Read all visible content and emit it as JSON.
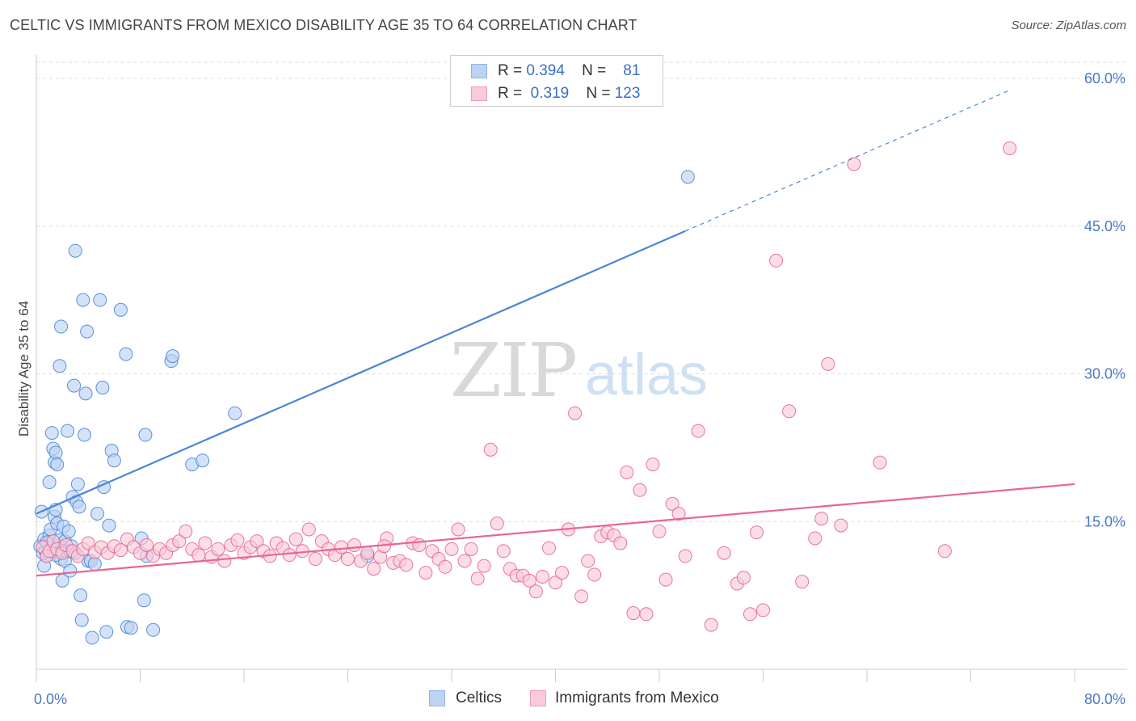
{
  "title": "CELTIC VS IMMIGRANTS FROM MEXICO DISABILITY AGE 35 TO 64 CORRELATION CHART",
  "source": "Source: ZipAtlas.com",
  "watermark": {
    "zip": "ZIP",
    "atlas": "atlas"
  },
  "stats": [
    {
      "r_label": "R =",
      "r": "0.394",
      "n_label": "N =",
      "n": "81",
      "color": "#8fb4e8",
      "fill": "#bdd3f3"
    },
    {
      "r_label": "R =",
      "r": "0.319",
      "n_label": "N =",
      "n": "123",
      "color": "#f09bb8",
      "fill": "#f9cbd9"
    }
  ],
  "legend": [
    {
      "label": "Celtics",
      "color": "#8fb4e8",
      "fill": "#bdd3f3"
    },
    {
      "label": "Immigrants from Mexico",
      "color": "#f09bb8",
      "fill": "#f9cbd9"
    }
  ],
  "chart_data": {
    "type": "scatter",
    "title": "CELTIC VS IMMIGRANTS FROM MEXICO DISABILITY AGE 35 TO 64 CORRELATION CHART",
    "xlabel": "",
    "ylabel": "Disability Age 35 to 64",
    "xlim": [
      0,
      80
    ],
    "ylim": [
      0,
      60
    ],
    "x_tick_labels": [
      "0.0%",
      "80.0%"
    ],
    "y_ticks": [
      15,
      30,
      45,
      60
    ],
    "y_tick_labels": [
      "15.0%",
      "30.0%",
      "45.0%",
      "60.0%"
    ],
    "grid": true,
    "series": [
      {
        "name": "Celtics",
        "color": "#4a86d8",
        "fill": "#bdd3f3",
        "trend": {
          "x0": 0,
          "y0": 15.8,
          "x1": 50,
          "y1": 44.5,
          "dashed_to_x": 75,
          "dashed_to_y": 58.8
        },
        "points": [
          [
            0.3,
            12.5
          ],
          [
            0.5,
            11.8
          ],
          [
            0.6,
            13.2
          ],
          [
            0.7,
            12.0
          ],
          [
            0.8,
            11.5
          ],
          [
            0.9,
            12.8
          ],
          [
            1.0,
            13.6
          ],
          [
            1.1,
            14.2
          ],
          [
            1.2,
            12.3
          ],
          [
            1.3,
            11.9
          ],
          [
            1.4,
            15.5
          ],
          [
            1.5,
            16.2
          ],
          [
            1.6,
            14.8
          ],
          [
            1.7,
            12.6
          ],
          [
            1.8,
            13.1
          ],
          [
            1.9,
            11.2
          ],
          [
            2.0,
            12.4
          ],
          [
            2.1,
            14.5
          ],
          [
            2.2,
            13.0
          ],
          [
            2.3,
            12.1
          ],
          [
            0.4,
            16.0
          ],
          [
            0.6,
            10.5
          ],
          [
            0.8,
            12.9
          ],
          [
            1.0,
            19.0
          ],
          [
            1.2,
            24.0
          ],
          [
            1.3,
            22.4
          ],
          [
            1.4,
            21.0
          ],
          [
            1.5,
            22.0
          ],
          [
            1.6,
            20.8
          ],
          [
            1.8,
            30.8
          ],
          [
            1.9,
            34.8
          ],
          [
            2.0,
            9.0
          ],
          [
            2.2,
            11.0
          ],
          [
            2.4,
            24.2
          ],
          [
            2.5,
            14.0
          ],
          [
            2.6,
            10.0
          ],
          [
            2.7,
            12.5
          ],
          [
            2.8,
            17.5
          ],
          [
            2.9,
            28.8
          ],
          [
            3.0,
            42.5
          ],
          [
            3.1,
            17.0
          ],
          [
            3.2,
            18.8
          ],
          [
            3.3,
            16.5
          ],
          [
            3.4,
            7.5
          ],
          [
            3.5,
            5.0
          ],
          [
            3.6,
            37.5
          ],
          [
            3.7,
            23.8
          ],
          [
            3.8,
            28.0
          ],
          [
            3.9,
            34.3
          ],
          [
            4.0,
            11.0
          ],
          [
            4.2,
            11.0
          ],
          [
            4.3,
            3.2
          ],
          [
            4.5,
            10.7
          ],
          [
            4.7,
            15.8
          ],
          [
            4.9,
            37.5
          ],
          [
            5.1,
            28.6
          ],
          [
            5.2,
            18.5
          ],
          [
            5.4,
            3.8
          ],
          [
            5.6,
            14.6
          ],
          [
            5.8,
            22.2
          ],
          [
            6.0,
            21.2
          ],
          [
            6.5,
            36.5
          ],
          [
            6.9,
            32.0
          ],
          [
            7.0,
            4.3
          ],
          [
            7.3,
            4.2
          ],
          [
            8.1,
            13.3
          ],
          [
            8.4,
            23.8
          ],
          [
            8.3,
            7.0
          ],
          [
            8.5,
            11.5
          ],
          [
            9.0,
            4.0
          ],
          [
            10.4,
            31.3
          ],
          [
            10.5,
            31.8
          ],
          [
            12.0,
            20.8
          ],
          [
            12.8,
            21.2
          ],
          [
            15.3,
            26.0
          ],
          [
            2.0,
            12.0
          ],
          [
            3.0,
            11.8
          ],
          [
            1.5,
            11.6
          ],
          [
            25.5,
            11.5
          ],
          [
            50.2,
            50.0
          ],
          [
            2.6,
            12.0
          ]
        ]
      },
      {
        "name": "Immigrants from Mexico",
        "color": "#e86594",
        "fill": "#f9cbd9",
        "trend": {
          "x0": 0,
          "y0": 9.5,
          "x1": 80,
          "y1": 18.8
        },
        "points": [
          [
            0.5,
            12.4
          ],
          [
            0.8,
            11.5
          ],
          [
            1.0,
            12.0
          ],
          [
            1.3,
            13.0
          ],
          [
            1.6,
            12.2
          ],
          [
            2.0,
            11.8
          ],
          [
            2.3,
            12.6
          ],
          [
            2.8,
            12.0
          ],
          [
            3.2,
            11.5
          ],
          [
            3.6,
            12.2
          ],
          [
            4.0,
            12.8
          ],
          [
            4.5,
            11.9
          ],
          [
            5.0,
            12.4
          ],
          [
            5.5,
            11.8
          ],
          [
            6.0,
            12.5
          ],
          [
            6.5,
            12.1
          ],
          [
            7.0,
            13.2
          ],
          [
            7.5,
            12.4
          ],
          [
            8.0,
            11.8
          ],
          [
            8.5,
            12.6
          ],
          [
            9.0,
            11.5
          ],
          [
            9.5,
            12.2
          ],
          [
            10.0,
            11.8
          ],
          [
            10.5,
            12.6
          ],
          [
            11.0,
            13.0
          ],
          [
            11.5,
            14.0
          ],
          [
            12.0,
            12.2
          ],
          [
            12.5,
            11.6
          ],
          [
            13.0,
            12.8
          ],
          [
            13.5,
            11.4
          ],
          [
            14.0,
            12.2
          ],
          [
            14.5,
            11.0
          ],
          [
            15.0,
            12.6
          ],
          [
            15.5,
            13.1
          ],
          [
            16.0,
            11.8
          ],
          [
            16.5,
            12.4
          ],
          [
            17.0,
            13.0
          ],
          [
            17.5,
            12.0
          ],
          [
            18.0,
            11.5
          ],
          [
            18.5,
            12.8
          ],
          [
            19.0,
            12.3
          ],
          [
            19.5,
            11.6
          ],
          [
            20.0,
            13.2
          ],
          [
            20.5,
            12.0
          ],
          [
            21.0,
            14.2
          ],
          [
            21.5,
            11.2
          ],
          [
            22.0,
            13.0
          ],
          [
            22.5,
            12.2
          ],
          [
            23.0,
            11.6
          ],
          [
            23.5,
            12.4
          ],
          [
            24.0,
            11.2
          ],
          [
            24.5,
            12.6
          ],
          [
            25.0,
            11.0
          ],
          [
            25.5,
            11.8
          ],
          [
            26.0,
            10.2
          ],
          [
            26.5,
            11.4
          ],
          [
            27.0,
            13.3
          ],
          [
            27.5,
            10.8
          ],
          [
            28.0,
            11.0
          ],
          [
            28.5,
            10.6
          ],
          [
            29.0,
            12.8
          ],
          [
            29.5,
            12.6
          ],
          [
            30.0,
            9.8
          ],
          [
            30.5,
            12.0
          ],
          [
            31.0,
            11.2
          ],
          [
            31.5,
            10.4
          ],
          [
            32.0,
            12.2
          ],
          [
            32.5,
            14.2
          ],
          [
            33.0,
            11.0
          ],
          [
            33.5,
            12.2
          ],
          [
            34.0,
            9.2
          ],
          [
            34.5,
            10.5
          ],
          [
            35.0,
            22.3
          ],
          [
            35.5,
            14.8
          ],
          [
            36.0,
            12.0
          ],
          [
            36.5,
            10.2
          ],
          [
            37.0,
            9.5
          ],
          [
            37.5,
            9.5
          ],
          [
            38.0,
            9.0
          ],
          [
            38.5,
            7.9
          ],
          [
            39.0,
            9.4
          ],
          [
            39.5,
            12.3
          ],
          [
            40.0,
            8.8
          ],
          [
            40.5,
            9.8
          ],
          [
            41.0,
            14.2
          ],
          [
            41.5,
            26.0
          ],
          [
            42.0,
            7.4
          ],
          [
            42.5,
            11.0
          ],
          [
            43.0,
            9.6
          ],
          [
            43.5,
            13.5
          ],
          [
            44.0,
            13.9
          ],
          [
            44.5,
            13.6
          ],
          [
            45.0,
            12.8
          ],
          [
            45.5,
            20.0
          ],
          [
            46.0,
            5.7
          ],
          [
            46.5,
            18.2
          ],
          [
            47.0,
            5.6
          ],
          [
            47.5,
            20.8
          ],
          [
            48.0,
            14.0
          ],
          [
            48.5,
            9.1
          ],
          [
            49.0,
            16.8
          ],
          [
            49.5,
            15.8
          ],
          [
            50.0,
            11.5
          ],
          [
            51.0,
            24.2
          ],
          [
            52.0,
            4.5
          ],
          [
            53.0,
            11.8
          ],
          [
            54.0,
            8.7
          ],
          [
            54.5,
            9.3
          ],
          [
            55.0,
            5.6
          ],
          [
            55.5,
            13.9
          ],
          [
            56.0,
            6.0
          ],
          [
            57.0,
            41.5
          ],
          [
            58.0,
            26.2
          ],
          [
            59.0,
            8.9
          ],
          [
            60.0,
            13.3
          ],
          [
            61.0,
            31.0
          ],
          [
            62.0,
            14.6
          ],
          [
            63.0,
            51.3
          ],
          [
            65.0,
            21.0
          ],
          [
            70.0,
            12.0
          ],
          [
            75.0,
            52.9
          ],
          [
            60.5,
            15.3
          ],
          [
            26.8,
            12.5
          ]
        ]
      }
    ]
  }
}
